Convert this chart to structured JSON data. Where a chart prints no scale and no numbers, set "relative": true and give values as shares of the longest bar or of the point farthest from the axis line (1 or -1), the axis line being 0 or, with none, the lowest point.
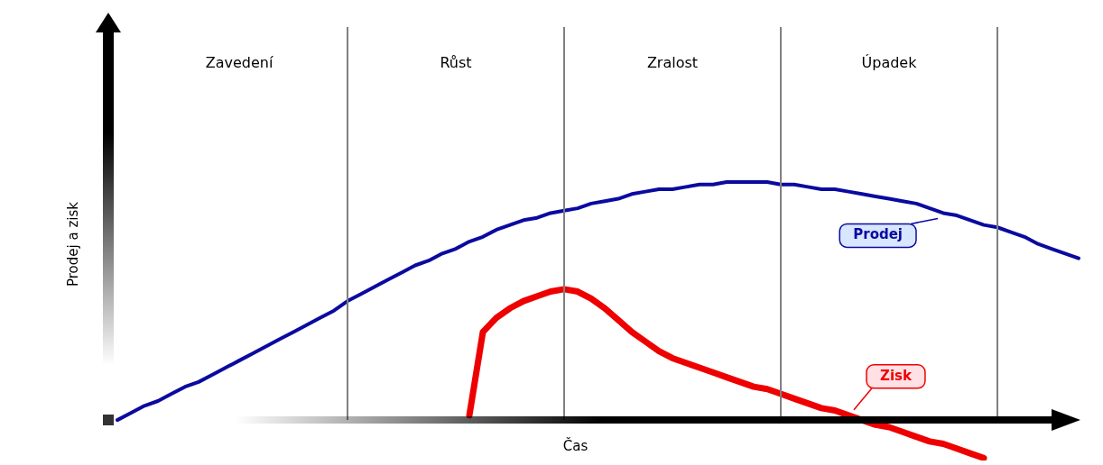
{
  "chart_data": {
    "type": "line",
    "relative": true,
    "ylabel": "Prodej a zisk",
    "xlabel": "Čas",
    "line_style": "solid",
    "grid": "x",
    "categories": [
      null,
      null,
      null,
      null,
      null,
      null,
      null,
      null,
      null,
      "Zavedení",
      null,
      null,
      null,
      null,
      null,
      null,
      null,
      null,
      null,
      null,
      null,
      null,
      null,
      null,
      null,
      "Růst",
      null,
      null,
      null,
      null,
      null,
      null,
      null,
      null,
      null,
      null,
      null,
      null,
      null,
      null,
      null,
      "Zralost",
      null,
      null,
      null,
      null,
      null,
      null,
      null,
      null,
      null,
      null,
      null,
      null,
      null,
      null,
      null,
      "Úpadek",
      null,
      null,
      null,
      null,
      null,
      null,
      null,
      null,
      null,
      null,
      null,
      null,
      null,
      null
    ],
    "series": [
      {
        "name": "Prodej",
        "color": "#0a0aa0",
        "values": [
          0,
          0.03,
          0.06,
          0.08,
          0.11,
          0.14,
          0.16,
          0.19,
          0.22,
          0.25,
          0.28,
          0.31,
          0.34,
          0.37,
          0.4,
          0.43,
          0.46,
          0.5,
          0.53,
          0.56,
          0.59,
          0.62,
          0.65,
          0.67,
          0.7,
          0.72,
          0.75,
          0.77,
          0.8,
          0.82,
          0.84,
          0.85,
          0.87,
          0.88,
          0.89,
          0.91,
          0.92,
          0.93,
          0.95,
          0.96,
          0.97,
          0.97,
          0.98,
          0.99,
          0.99,
          1.0,
          1.0,
          1.0,
          1.0,
          0.99,
          0.99,
          0.98,
          0.97,
          0.97,
          0.96,
          0.95,
          0.94,
          0.93,
          0.92,
          0.91,
          0.89,
          0.87,
          0.86,
          0.84,
          0.82,
          0.81,
          0.79,
          0.77,
          0.74,
          0.72,
          0.7,
          0.68
        ]
      },
      {
        "name": "Zisk",
        "color": "#ee0000",
        "values": [
          null,
          null,
          null,
          null,
          null,
          null,
          null,
          null,
          null,
          null,
          null,
          null,
          null,
          null,
          null,
          null,
          null,
          null,
          null,
          null,
          null,
          null,
          null,
          null,
          null,
          null,
          0.02,
          0.37,
          0.43,
          0.47,
          0.5,
          0.52,
          0.54,
          0.55,
          0.54,
          0.51,
          0.47,
          0.42,
          0.37,
          0.33,
          0.29,
          0.26,
          0.24,
          0.22,
          0.2,
          0.18,
          0.16,
          0.14,
          0.13,
          0.11,
          0.09,
          0.07,
          0.05,
          0.04,
          0.02,
          0.0,
          -0.02,
          -0.03,
          -0.05,
          -0.07,
          -0.09,
          -0.1,
          -0.12,
          -0.14,
          -0.16,
          null,
          null,
          null,
          null,
          null,
          null,
          null
        ]
      }
    ]
  }
}
